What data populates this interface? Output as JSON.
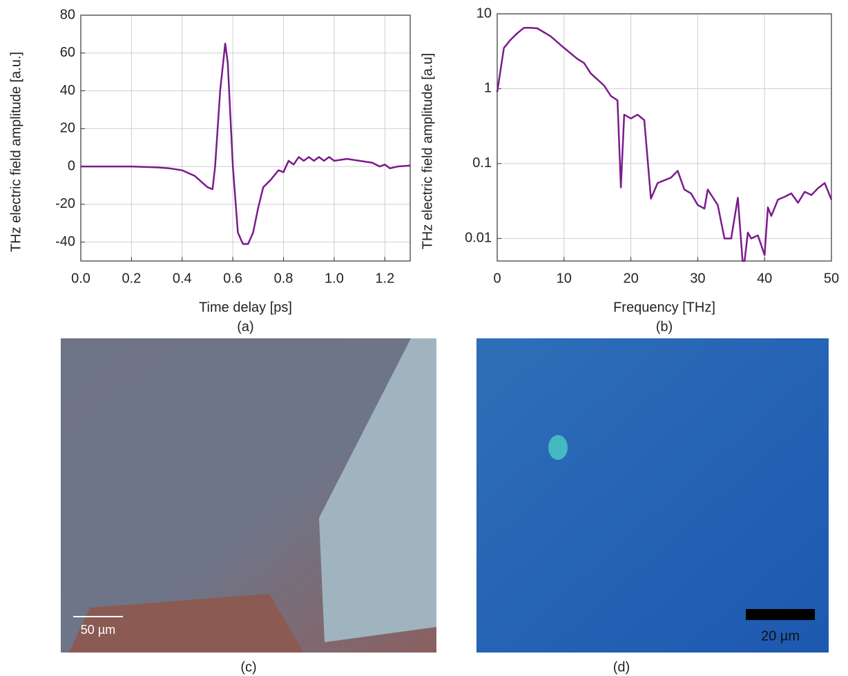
{
  "chart_data": [
    {
      "type": "line",
      "caption": "(a)",
      "x_label": "Time delay [ps]",
      "y_label": "THz electric field amplitude [a.u.]",
      "xlim": [
        0,
        1.3
      ],
      "ylim": [
        -50,
        80
      ],
      "xticks": [
        {
          "value": 0,
          "label": "0.0"
        },
        0.2,
        0.4,
        0.6,
        0.8,
        {
          "value": 1,
          "label": "1.0"
        },
        1.2
      ],
      "yticks": [
        -40,
        -20,
        0,
        20,
        40,
        60,
        80
      ],
      "grid": true,
      "log_y": false,
      "series": [
        {
          "color": "#7b1a8c",
          "x": [
            0,
            0.1,
            0.2,
            0.3,
            0.35,
            0.4,
            0.45,
            0.5,
            0.52,
            0.53,
            0.55,
            0.57,
            0.58,
            0.6,
            0.62,
            0.64,
            0.66,
            0.68,
            0.7,
            0.72,
            0.75,
            0.78,
            0.8,
            0.82,
            0.84,
            0.86,
            0.88,
            0.9,
            0.92,
            0.94,
            0.96,
            0.98,
            1.0,
            1.05,
            1.1,
            1.15,
            1.18,
            1.2,
            1.22,
            1.25,
            1.3
          ],
          "values": [
            0,
            0,
            0,
            -0.5,
            -1,
            -2,
            -5,
            -11,
            -12,
            0,
            40,
            65,
            55,
            0,
            -35,
            -41,
            -41,
            -35,
            -22,
            -11,
            -7,
            -2,
            -3,
            3,
            1,
            5,
            3,
            5,
            3,
            5,
            3,
            5,
            3,
            4,
            3,
            2,
            0,
            1,
            -1,
            0,
            0.5
          ]
        }
      ]
    },
    {
      "type": "line",
      "caption": "(b)",
      "x_label": "Frequency [THz]",
      "y_label": "THz electric field amplitude [a.u]",
      "xlim": [
        0,
        50
      ],
      "ylim": [
        0.005,
        10
      ],
      "xticks": [
        0,
        10,
        20,
        30,
        40,
        50
      ],
      "yticks": [
        0.01,
        0.1,
        1,
        10
      ],
      "grid": true,
      "log_y": true,
      "series": [
        {
          "color": "#7b1a8c",
          "x": [
            0,
            1,
            2,
            3,
            4,
            5,
            6,
            8,
            10,
            12,
            13,
            14,
            16,
            17,
            18,
            18.5,
            19,
            20,
            21,
            22,
            23,
            24,
            26,
            27,
            28,
            29,
            30,
            31,
            31.5,
            33,
            34,
            35,
            36,
            36.7,
            37,
            37.5,
            38,
            39,
            40,
            40.5,
            41,
            42,
            43,
            44,
            45,
            46,
            47,
            48,
            49,
            50
          ],
          "values": [
            0.9,
            3.5,
            4.5,
            5.5,
            6.5,
            6.5,
            6.4,
            5,
            3.5,
            2.5,
            2.2,
            1.6,
            1.1,
            0.8,
            0.7,
            0.048,
            0.45,
            0.4,
            0.45,
            0.38,
            0.034,
            0.055,
            0.065,
            0.08,
            0.045,
            0.04,
            0.028,
            0.025,
            0.045,
            0.028,
            0.01,
            0.01,
            0.035,
            0.005,
            0.005,
            0.012,
            0.01,
            0.011,
            0.006,
            0.026,
            0.02,
            0.033,
            0.036,
            0.04,
            0.03,
            0.042,
            0.038,
            0.047,
            0.055,
            0.033
          ]
        }
      ]
    }
  ],
  "images": [
    {
      "caption": "(c)",
      "scale_bar": "50 µm"
    },
    {
      "caption": "(d)",
      "scale_bar": "20 µm"
    }
  ]
}
